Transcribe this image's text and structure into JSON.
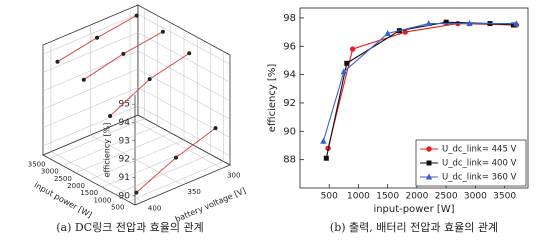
{
  "chart_data": [
    {
      "type": "scatter3d",
      "caption": "(a) DC링크 전압과 효율의 관계",
      "zlabel": "efficiency [%]",
      "xlabel": "input power [W]",
      "ylabel": "battery voltage [V]",
      "xlim": [
        250,
        3750
      ],
      "xticks": [
        500,
        1000,
        1500,
        2000,
        2500,
        3000,
        3500
      ],
      "ylim": [
        290,
        410
      ],
      "yticks": [
        300,
        350,
        400
      ],
      "zlim": [
        89.5,
        95.5
      ],
      "zticks": [
        90,
        91,
        92,
        93,
        94,
        95
      ],
      "color": "#d94a4a",
      "series": [
        {
          "x": [
            3500,
            3500,
            3500
          ],
          "y": [
            300,
            350,
            400
          ],
          "z": [
            95.3,
            95.0,
            94.6
          ]
        },
        {
          "x": [
            2500,
            2500,
            2500
          ],
          "y": [
            300,
            350,
            400
          ],
          "z": [
            95.2,
            94.9,
            94.4
          ]
        },
        {
          "x": [
            1500,
            1500,
            1500
          ],
          "y": [
            300,
            350,
            400
          ],
          "z": [
            94.8,
            94.3,
            93.2
          ]
        },
        {
          "x": [
            500,
            500,
            500
          ],
          "y": [
            300,
            350,
            400
          ],
          "z": [
            91.5,
            90.8,
            89.8
          ]
        }
      ]
    },
    {
      "type": "line",
      "caption": "(b) 출력, 배터리 전압과 효율의 관계",
      "xlabel": "input-power [W]",
      "ylabel": "efficiency [%]",
      "xlim": [
        0,
        3900
      ],
      "xticks": [
        500,
        1000,
        1500,
        2000,
        2500,
        3000,
        3500
      ],
      "ylim": [
        86,
        98.7
      ],
      "yticks": [
        88,
        90,
        92,
        94,
        96,
        98
      ],
      "grid": false,
      "legend": "lower right",
      "series": [
        {
          "name": "U_dc_link= 445 V",
          "color": "#e02020",
          "marker": "circle",
          "x": [
            480,
            900,
            1800,
            2700,
            3700
          ],
          "values": [
            88.8,
            95.8,
            97.0,
            97.6,
            97.5
          ]
        },
        {
          "name": "U_dc_link= 400 V",
          "color": "#111111",
          "marker": "square",
          "x": [
            450,
            800,
            1700,
            2500,
            3250,
            3650
          ],
          "values": [
            88.1,
            94.8,
            97.1,
            97.7,
            97.6,
            97.5
          ]
        },
        {
          "name": "U_dc_link= 360 V",
          "color": "#3a5fcd",
          "marker": "triangle",
          "x": [
            400,
            750,
            1500,
            2200,
            2900,
            3700
          ],
          "values": [
            89.3,
            94.2,
            96.9,
            97.6,
            97.6,
            97.6
          ]
        }
      ]
    }
  ]
}
